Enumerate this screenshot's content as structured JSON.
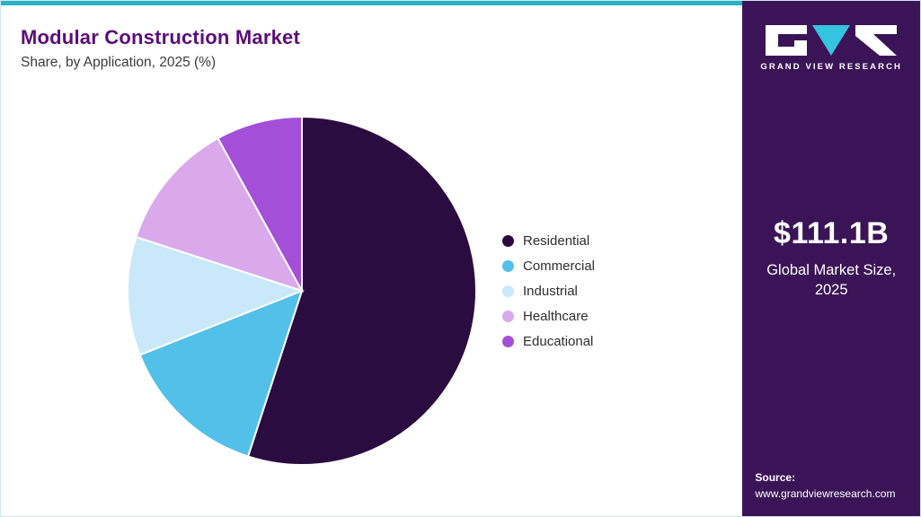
{
  "header": {
    "title": "Modular Construction Market",
    "subtitle": "Share, by Application, 2025 (%)"
  },
  "chart_data": {
    "type": "pie",
    "title": "Modular Construction Market Share, by Application, 2025 (%)",
    "categories": [
      "Residential",
      "Commercial",
      "Industrial",
      "Healthcare",
      "Educational"
    ],
    "values": [
      55,
      14,
      11,
      12,
      8
    ],
    "unit": "%",
    "colors": [
      "#2b0c41",
      "#53c0ea",
      "#c9e8f9",
      "#d9a9ec",
      "#a44fd8"
    ],
    "legend_position": "right",
    "start_angle_deg": 0,
    "direction": "clockwise"
  },
  "sidebar": {
    "brand": "GRAND VIEW RESEARCH",
    "market_size": "$111.1B",
    "market_size_label": "Global Market Size, 2025",
    "source_label": "Source:",
    "source_url": "www.grandviewresearch.com"
  },
  "theme": {
    "title_color": "#5c0d7a",
    "accent_teal": "#2ab2c6",
    "sidebar_bg": "#3b1457",
    "text_dark": "#3a3a3a",
    "logo_cyan": "#35c4dd"
  }
}
